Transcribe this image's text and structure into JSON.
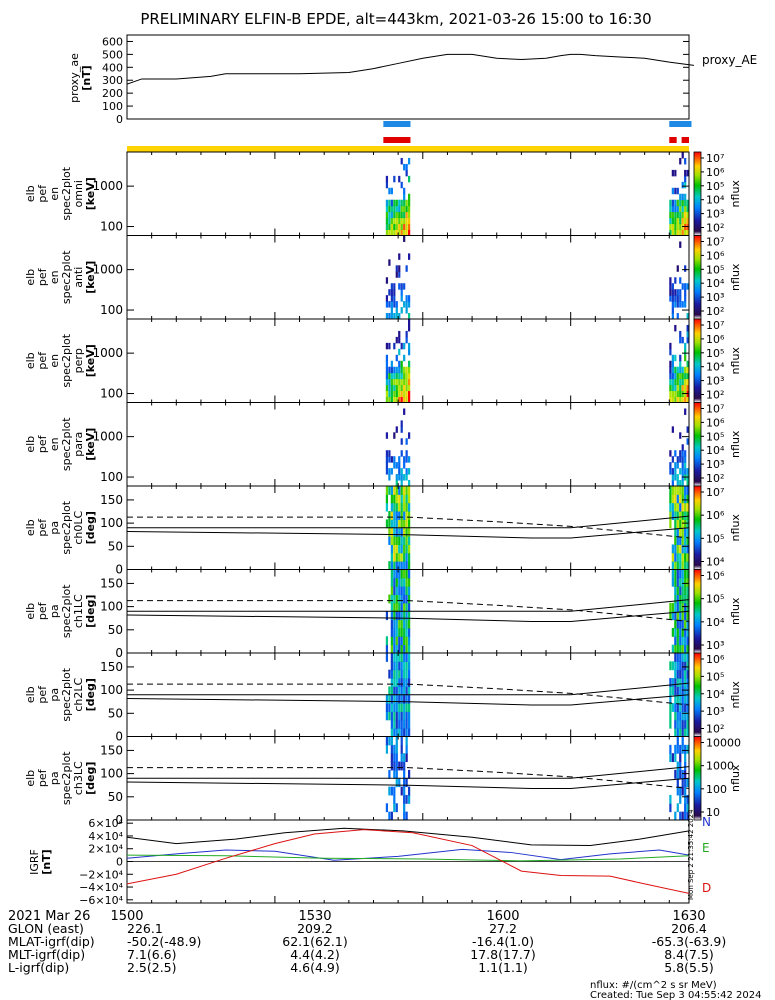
{
  "chart_data": {
    "type": "stack_plot",
    "title": "PRELIMINARY ELFIN-B EPDE, alt=443km, 2021-03-26 15:00 to 16:30",
    "colors": {
      "line": "#000000",
      "bar_blue": "#1e88e5",
      "bar_red": "#e00000",
      "bar_yellow": "#ffd400",
      "bx": "#2233cc",
      "by": "#22aa22",
      "bz": "#dd1111"
    },
    "proxy_ae": {
      "ylabel": [
        "proxy_ae",
        "[nT]"
      ],
      "legend": "proxy_AE",
      "ylim": [
        0,
        650
      ],
      "ticks": [
        "0",
        "100",
        "200",
        "300",
        "400",
        "500",
        "600"
      ],
      "tick_values": [
        0,
        100,
        200,
        300,
        400,
        500,
        600
      ],
      "series": [
        [
          0,
          270
        ],
        [
          3,
          310
        ],
        [
          10,
          310
        ],
        [
          17,
          330
        ],
        [
          20,
          350
        ],
        [
          35,
          350
        ],
        [
          45,
          360
        ],
        [
          50,
          390
        ],
        [
          55,
          430
        ],
        [
          60,
          470
        ],
        [
          65,
          500
        ],
        [
          70,
          500
        ],
        [
          75,
          470
        ],
        [
          80,
          460
        ],
        [
          85,
          470
        ],
        [
          88,
          490
        ],
        [
          90,
          500
        ],
        [
          92,
          500
        ],
        [
          95,
          490
        ],
        [
          100,
          480
        ],
        [
          105,
          470
        ],
        [
          110,
          440
        ],
        [
          115,
          415
        ]
      ]
    },
    "science_zones": {
      "blue": [
        [
          52,
          57.5
        ],
        [
          110,
          114.5
        ]
      ],
      "red": [
        [
          52,
          57.5
        ],
        [
          110,
          111.5
        ],
        [
          112.5,
          114
        ]
      ],
      "yellow": [
        [
          0,
          114
        ]
      ]
    },
    "spectrograms": [
      {
        "ylabel": [
          "elb",
          "pef",
          "en",
          "spec2plot",
          "omni",
          "[keV]"
        ],
        "zlabel": "nflux",
        "yticks": [
          "100",
          "1000"
        ],
        "ytick_values": [
          100,
          1000
        ],
        "ylim": [
          60,
          7000
        ],
        "ztick_labels": [
          "10²",
          "10³",
          "10⁴",
          "10⁵",
          "10⁶",
          "10⁷"
        ],
        "zrange": [
          2,
          7
        ],
        "type": "energy",
        "intensity": 1.0
      },
      {
        "ylabel": [
          "elb",
          "pef",
          "en",
          "spec2plot",
          "anti",
          "[keV]"
        ],
        "zlabel": "nflux",
        "yticks": [
          "100",
          "1000"
        ],
        "ytick_values": [
          100,
          1000
        ],
        "ylim": [
          60,
          7000
        ],
        "ztick_labels": [
          "10²",
          "10³",
          "10⁴",
          "10⁵",
          "10⁶",
          "10⁷"
        ],
        "zrange": [
          2,
          7
        ],
        "type": "energy",
        "intensity": 0.45
      },
      {
        "ylabel": [
          "elb",
          "pef",
          "en",
          "spec2plot",
          "perp",
          "[keV]"
        ],
        "zlabel": "nflux",
        "yticks": [
          "100",
          "1000"
        ],
        "ytick_values": [
          100,
          1000
        ],
        "ylim": [
          60,
          7000
        ],
        "ztick_labels": [
          "10²",
          "10³",
          "10⁴",
          "10⁵",
          "10⁶",
          "10⁷"
        ],
        "zrange": [
          2,
          7
        ],
        "type": "energy",
        "intensity": 1.0
      },
      {
        "ylabel": [
          "elb",
          "pef",
          "en",
          "spec2plot",
          "para",
          "[keV]"
        ],
        "zlabel": "nflux",
        "yticks": [
          "100",
          "1000"
        ],
        "ytick_values": [
          100,
          1000
        ],
        "ylim": [
          60,
          7000
        ],
        "ztick_labels": [
          "10²",
          "10³",
          "10⁴",
          "10⁵",
          "10⁶",
          "10⁷"
        ],
        "zrange": [
          2,
          7
        ],
        "type": "energy",
        "intensity": 0.5
      },
      {
        "ylabel": [
          "elb",
          "pef",
          "pa",
          "spec2plot",
          "ch0LC",
          "[deg]"
        ],
        "zlabel": "nflux",
        "yticks": [
          "0",
          "50",
          "100",
          "150"
        ],
        "ytick_values": [
          0,
          50,
          100,
          150
        ],
        "ylim": [
          0,
          180
        ],
        "ztick_labels": [
          "10⁴",
          "10⁵",
          "10⁶",
          "10⁷"
        ],
        "zrange": [
          3.5,
          7
        ],
        "type": "pa",
        "intensity": 1.0
      },
      {
        "ylabel": [
          "elb",
          "pef",
          "pa",
          "spec2plot",
          "ch1LC",
          "[deg]"
        ],
        "zlabel": "nflux",
        "yticks": [
          "0",
          "50",
          "100",
          "150"
        ],
        "ytick_values": [
          0,
          50,
          100,
          150
        ],
        "ylim": [
          0,
          180
        ],
        "ztick_labels": [
          "10³",
          "10⁴",
          "10⁵",
          "10⁶"
        ],
        "zrange": [
          2.8,
          6.6
        ],
        "type": "pa",
        "intensity": 0.8
      },
      {
        "ylabel": [
          "elb",
          "pef",
          "pa",
          "spec2plot",
          "ch2LC",
          "[deg]"
        ],
        "zlabel": "nflux",
        "yticks": [
          "0",
          "50",
          "100",
          "150"
        ],
        "ytick_values": [
          0,
          50,
          100,
          150
        ],
        "ylim": [
          0,
          180
        ],
        "ztick_labels": [
          "10²",
          "10³",
          "10⁴",
          "10⁵",
          "10⁶"
        ],
        "zrange": [
          1.8,
          6.5
        ],
        "type": "pa",
        "intensity": 0.6
      },
      {
        "ylabel": [
          "elb",
          "pef",
          "pa",
          "spec2plot",
          "ch3LC",
          "[deg]"
        ],
        "zlabel": "nflux",
        "yticks": [
          "0",
          "50",
          "100",
          "150"
        ],
        "ytick_values": [
          0,
          50,
          100,
          150
        ],
        "ylim": [
          0,
          180
        ],
        "ztick_labels": [
          "10",
          "100",
          "1000",
          "10000"
        ],
        "zrange": [
          1,
          4.2
        ],
        "type": "pa",
        "intensity": 0.5
      }
    ],
    "loss_cone": {
      "dashed": [
        [
          0,
          113
        ],
        [
          57,
          113
        ],
        [
          75,
          103
        ],
        [
          90,
          93
        ],
        [
          100,
          83
        ],
        [
          114,
          68
        ]
      ],
      "solid_upper": [
        [
          0,
          90
        ],
        [
          57,
          90
        ],
        [
          90,
          90
        ],
        [
          114,
          115
        ]
      ],
      "solid_lower": [
        [
          0,
          82
        ],
        [
          57,
          75
        ],
        [
          82,
          68
        ],
        [
          90,
          68
        ],
        [
          114,
          90
        ]
      ]
    },
    "igrf": {
      "ylabel": [
        "IGRF",
        "[nT]"
      ],
      "ylim": [
        -65000,
        65000
      ],
      "ticks": [
        "−6×10⁴",
        "−4×10⁴",
        "−2×10⁴",
        "0",
        "2×10⁴",
        "4×10⁴",
        "6×10⁴"
      ],
      "tick_values": [
        -60000,
        -40000,
        -20000,
        0,
        20000,
        40000,
        60000
      ],
      "legend": [
        "N",
        "E",
        "D"
      ],
      "bx": [
        [
          0,
          5000
        ],
        [
          10,
          12000
        ],
        [
          20,
          18000
        ],
        [
          30,
          16000
        ],
        [
          42,
          2000
        ],
        [
          55,
          8000
        ],
        [
          68,
          19000
        ],
        [
          78,
          14000
        ],
        [
          88,
          3000
        ],
        [
          98,
          12000
        ],
        [
          108,
          18000
        ],
        [
          114,
          10000
        ]
      ],
      "by": [
        [
          0,
          10000
        ],
        [
          20,
          9000
        ],
        [
          40,
          5000
        ],
        [
          60,
          4000
        ],
        [
          80,
          1000
        ],
        [
          100,
          4000
        ],
        [
          114,
          9000
        ]
      ],
      "bz": [
        [
          0,
          -35000
        ],
        [
          10,
          -20000
        ],
        [
          20,
          5000
        ],
        [
          30,
          28000
        ],
        [
          38,
          43000
        ],
        [
          48,
          50000
        ],
        [
          58,
          45000
        ],
        [
          70,
          25000
        ],
        [
          80,
          -15000
        ],
        [
          88,
          -22000
        ],
        [
          98,
          -23000
        ],
        [
          105,
          -35000
        ],
        [
          114,
          -50000
        ]
      ],
      "bmag": [
        [
          0,
          38000
        ],
        [
          10,
          28000
        ],
        [
          22,
          35000
        ],
        [
          32,
          45000
        ],
        [
          44,
          52000
        ],
        [
          56,
          48000
        ],
        [
          70,
          38000
        ],
        [
          82,
          26000
        ],
        [
          94,
          25000
        ],
        [
          104,
          35000
        ],
        [
          114,
          48000
        ]
      ]
    },
    "x_axis": {
      "range_minutes": [
        0,
        90
      ],
      "tick_minutes": [
        0,
        30,
        60,
        90
      ],
      "tick_labels": [
        "1500",
        "1530",
        "1600",
        "1630"
      ],
      "date_label": "2021 Mar 26",
      "rows": [
        {
          "label": "GLON (east)",
          "values": [
            "226.1",
            "209.2",
            "27.2",
            "206.4"
          ]
        },
        {
          "label": "MLAT-igrf(dip)",
          "values": [
            "-50.2(-48.9)",
            "62.1(62.1)",
            "-16.4(1.0)",
            "-65.3(-63.9)"
          ]
        },
        {
          "label": "MLT-igrf(dip)",
          "values": [
            "7.1(6.6)",
            "4.4(4.2)",
            "17.8(17.7)",
            "8.4(7.5)"
          ]
        },
        {
          "label": "L-igrf(dip)",
          "values": [
            "2.5(2.5)",
            "4.6(4.9)",
            "1.1(1.1)",
            "5.8(5.5)"
          ]
        }
      ]
    },
    "footer": {
      "units": "nflux: #/(cm^2 s sr MeV)",
      "created": "Created: Tue Sep  3 04:55:42 2024",
      "side_stamp": "Mon Sep  2 21:35:42 2024"
    }
  }
}
